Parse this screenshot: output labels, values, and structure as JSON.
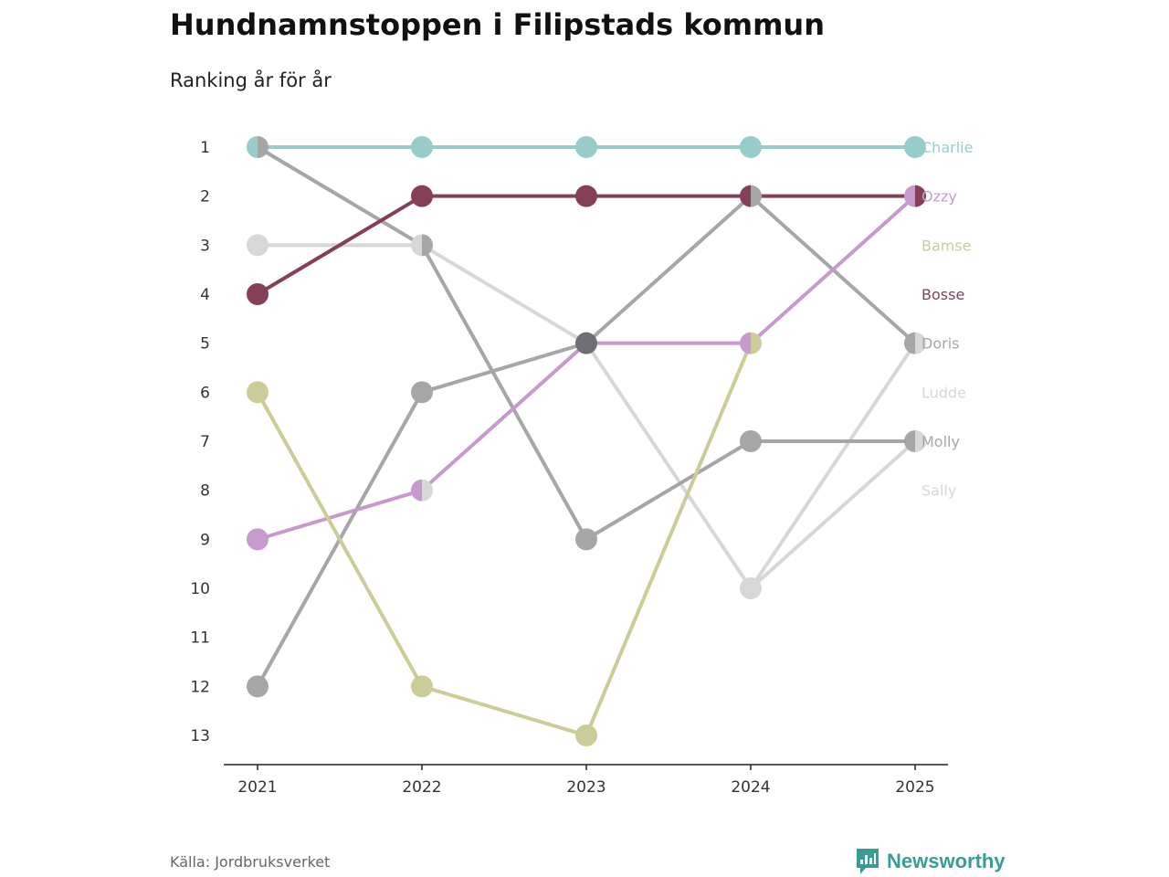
{
  "title": "Hundnamnstoppen i Filipstads kommun",
  "subtitle": "Ranking år för år",
  "source": "Källa: Jordbruksverket",
  "brand": "Newsworthy",
  "brand_color": "#3a9c96",
  "chart_data": {
    "type": "line",
    "chart_kind": "bump",
    "x": [
      "2021",
      "2022",
      "2023",
      "2024",
      "2025"
    ],
    "y_ticks": [
      1,
      2,
      3,
      4,
      5,
      6,
      7,
      8,
      9,
      10,
      11,
      12,
      13
    ],
    "ylim": [
      1,
      13
    ],
    "y_inverted": true,
    "series": [
      {
        "name": "Charlie",
        "color": "#98cccb",
        "values": [
          1,
          1,
          1,
          1,
          1
        ]
      },
      {
        "name": "Ozzy",
        "color": "#c799cc",
        "values": [
          9,
          8,
          5,
          5,
          2
        ]
      },
      {
        "name": "Bamse",
        "color": "#cccc98",
        "values": [
          6,
          12,
          13,
          5,
          null
        ]
      },
      {
        "name": "Bosse",
        "color": "#844155",
        "values": [
          4,
          2,
          2,
          2,
          2
        ]
      },
      {
        "name": "Doris",
        "color": "#a6a6a6",
        "values": [
          12,
          6,
          5,
          2,
          5
        ]
      },
      {
        "name": "Ludde",
        "color": "#d7d7d7",
        "values": [
          3,
          3,
          5,
          10,
          5
        ]
      },
      {
        "name": "Molly",
        "color": "#a6a6a6",
        "values": [
          1,
          3,
          9,
          7,
          7
        ]
      },
      {
        "name": "Sally",
        "color": "#d7d7d7",
        "values": [
          null,
          8,
          null,
          10,
          7
        ]
      }
    ],
    "overlap_color": "#6e6e74"
  }
}
